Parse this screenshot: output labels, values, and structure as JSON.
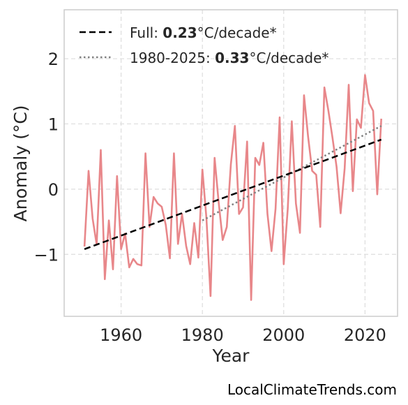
{
  "chart_data": {
    "type": "line",
    "xlabel": "Year",
    "ylabel": "Anomaly (°C)",
    "xlim": [
      1946,
      2028
    ],
    "ylim": [
      -1.95,
      2.75
    ],
    "xticks": [
      1960,
      1980,
      2000,
      2020
    ],
    "yticks": [
      -1,
      0,
      1,
      2
    ],
    "ytick_labels": [
      "−1",
      "0",
      "1",
      "2"
    ],
    "grid": true,
    "legend_placement": "top-left",
    "colors": {
      "series": "#e8878a",
      "full_trend": "#000000",
      "recent_trend": "#808080",
      "grid": "#dddddd",
      "frame": "#cccccc"
    },
    "series": [
      {
        "x": [
          1951,
          1952,
          1953,
          1954,
          1955,
          1956,
          1957,
          1958,
          1959,
          1960,
          1961,
          1962,
          1963,
          1964,
          1965,
          1966,
          1967,
          1968,
          1969,
          1970,
          1971,
          1972,
          1973,
          1974,
          1975,
          1976,
          1977,
          1978,
          1979,
          1980,
          1981,
          1982,
          1983,
          1984,
          1985,
          1986,
          1987,
          1988,
          1989,
          1990,
          1991,
          1992,
          1993,
          1994,
          1995,
          1996,
          1997,
          1998,
          1999,
          2000,
          2001,
          2002,
          2003,
          2004,
          2005,
          2006,
          2007,
          2008,
          2009,
          2010,
          2011,
          2012,
          2013,
          2014,
          2015,
          2016,
          2017,
          2018,
          2019,
          2020,
          2021,
          2022,
          2023,
          2024
        ],
        "values": [
          -0.88,
          0.28,
          -0.45,
          -0.85,
          0.6,
          -1.38,
          -0.48,
          -1.23,
          0.2,
          -0.92,
          -0.68,
          -1.2,
          -1.07,
          -1.15,
          -1.17,
          0.55,
          -0.58,
          -0.12,
          -0.22,
          -0.27,
          -0.55,
          -1.06,
          0.55,
          -0.84,
          -0.38,
          -0.87,
          -1.15,
          -0.52,
          -1.05,
          0.3,
          -0.45,
          -1.64,
          0.48,
          -0.2,
          -0.78,
          -0.58,
          0.38,
          0.97,
          -0.38,
          -0.28,
          0.73,
          -1.7,
          0.48,
          0.37,
          0.71,
          -0.38,
          -0.95,
          -0.3,
          1.1,
          -1.15,
          -0.3,
          1.04,
          -0.22,
          -0.67,
          1.44,
          0.8,
          0.28,
          0.22,
          -0.58,
          1.56,
          1.2,
          0.79,
          0.34,
          -0.37,
          0.32,
          1.6,
          -0.03,
          1.07,
          0.94,
          1.75,
          1.32,
          1.2,
          -0.08,
          1.08
        ]
      },
      {
        "name_prefix": "Full: ",
        "rate": "0.23",
        "unit": "°C/decade*",
        "x": [
          1951,
          2024
        ],
        "values": [
          -0.92,
          0.76
        ]
      },
      {
        "name_prefix": "1980-2025: ",
        "rate": "0.33",
        "unit": "°C/decade*",
        "x": [
          1980,
          2024
        ],
        "values": [
          -0.48,
          0.97
        ]
      }
    ]
  },
  "credit": "LocalClimateTrends.com"
}
